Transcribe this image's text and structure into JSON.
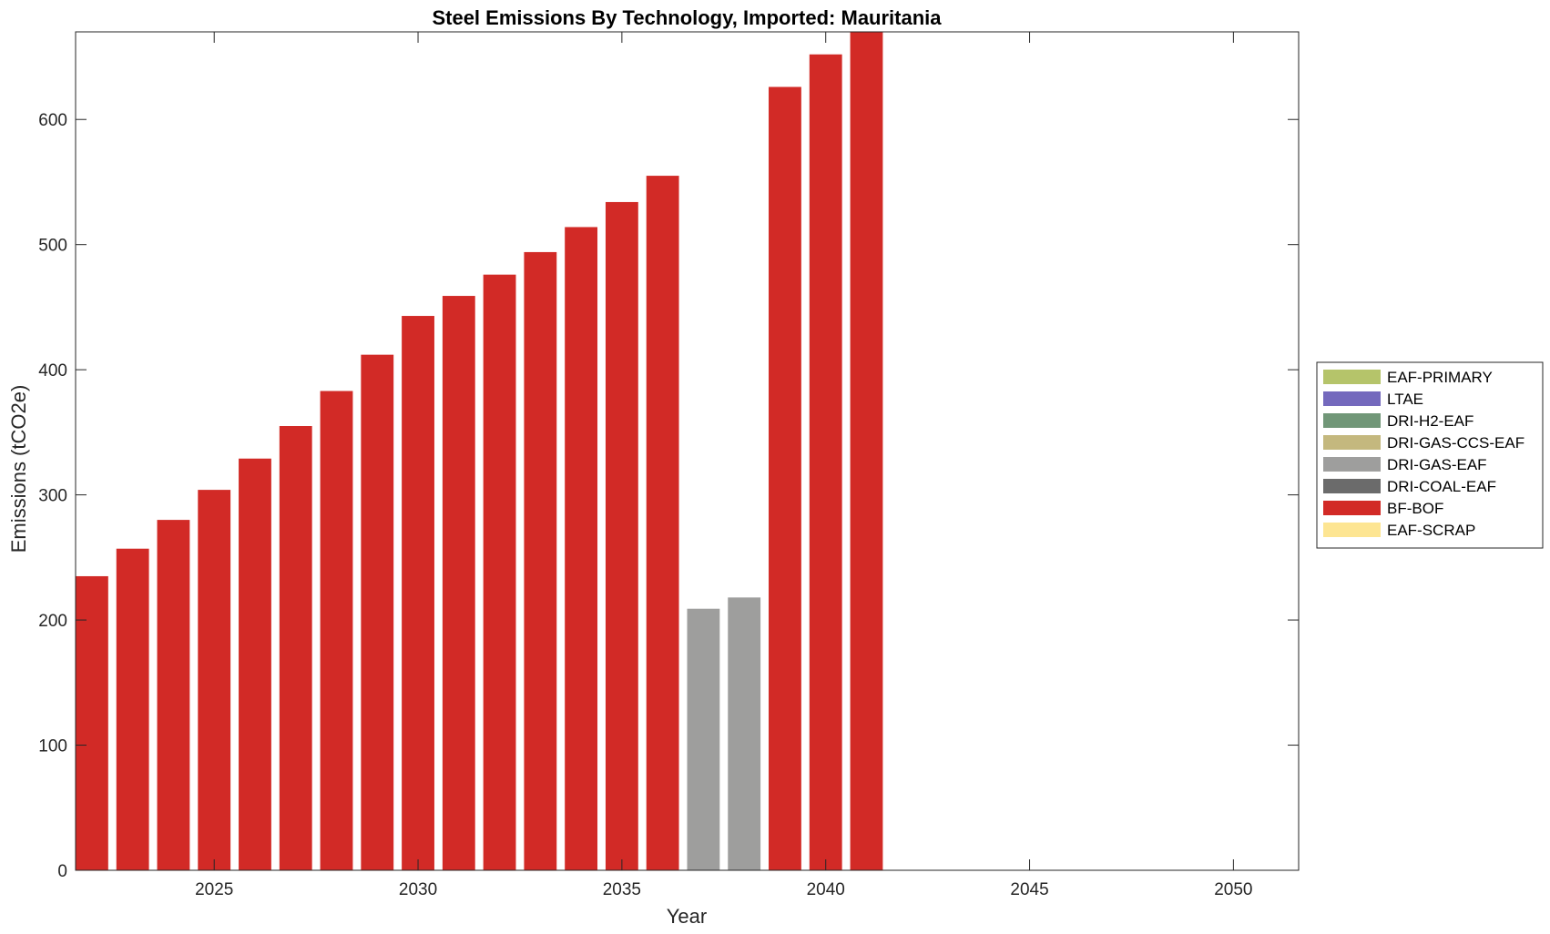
{
  "chart_data": {
    "type": "bar",
    "stacked": true,
    "title": "Steel Emissions By Technology, Imported: Mauritania",
    "xlabel": "Year",
    "ylabel": "Emissions (tCO2e)",
    "xlim": [
      2021.6,
      2051.6
    ],
    "ylim": [
      0,
      670
    ],
    "xticks": [
      2025,
      2030,
      2035,
      2040,
      2045,
      2050
    ],
    "yticks": [
      0,
      100,
      200,
      300,
      400,
      500,
      600
    ],
    "legend_position": "right",
    "categories": [
      2022,
      2023,
      2024,
      2025,
      2026,
      2027,
      2028,
      2029,
      2030,
      2031,
      2032,
      2033,
      2034,
      2035,
      2036,
      2037,
      2038,
      2039,
      2040,
      2041
    ],
    "series": [
      {
        "name": "EAF-PRIMARY",
        "color": "#b5c46a",
        "values": [
          0,
          0,
          0,
          0,
          0,
          0,
          0,
          0,
          0,
          0,
          0,
          0,
          0,
          0,
          0,
          0,
          0,
          0,
          0,
          0
        ]
      },
      {
        "name": "LTAE",
        "color": "#7469bd",
        "values": [
          0,
          0,
          0,
          0,
          0,
          0,
          0,
          0,
          0,
          0,
          0,
          0,
          0,
          0,
          0,
          0,
          0,
          0,
          0,
          0
        ]
      },
      {
        "name": "DRI-H2-EAF",
        "color": "#719778",
        "values": [
          0,
          0,
          0,
          0,
          0,
          0,
          0,
          0,
          0,
          0,
          0,
          0,
          0,
          0,
          0,
          0,
          0,
          0,
          0,
          0
        ]
      },
      {
        "name": "DRI-GAS-CCS-EAF",
        "color": "#c4b87e",
        "values": [
          0,
          0,
          0,
          0,
          0,
          0,
          0,
          0,
          0,
          0,
          0,
          0,
          0,
          0,
          0,
          0,
          0,
          0,
          0,
          0
        ]
      },
      {
        "name": "DRI-GAS-EAF",
        "color": "#9e9e9d",
        "values": [
          0,
          0,
          0,
          0,
          0,
          0,
          0,
          0,
          0,
          0,
          0,
          0,
          0,
          0,
          0,
          209,
          218,
          0,
          0,
          0
        ]
      },
      {
        "name": "DRI-COAL-EAF",
        "color": "#6b6b6b",
        "values": [
          0,
          0,
          0,
          0,
          0,
          0,
          0,
          0,
          0,
          0,
          0,
          0,
          0,
          0,
          0,
          0,
          0,
          0,
          0,
          0
        ]
      },
      {
        "name": "BF-BOF",
        "color": "#d22a26",
        "values": [
          235,
          257,
          280,
          304,
          329,
          355,
          383,
          412,
          443,
          459,
          476,
          494,
          514,
          534,
          555,
          0,
          0,
          626,
          652,
          670
        ]
      },
      {
        "name": "EAF-SCRAP",
        "color": "#fde592",
        "values": [
          0,
          0,
          0,
          0,
          0,
          0,
          0,
          0,
          0,
          0,
          0,
          0,
          0,
          0,
          0,
          0,
          0,
          0,
          0,
          0
        ]
      }
    ]
  }
}
